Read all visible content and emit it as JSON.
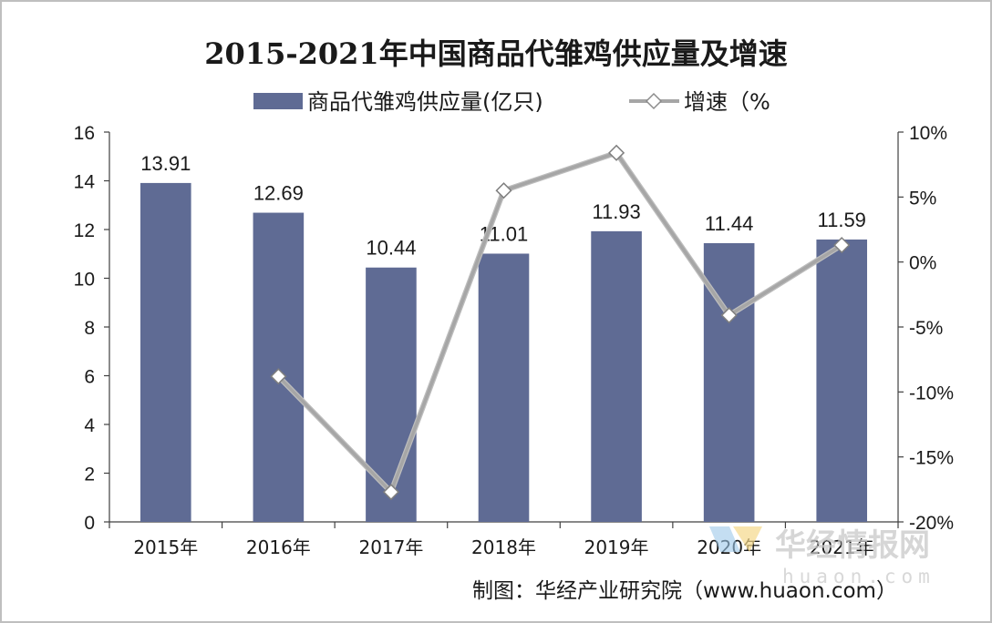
{
  "chart_data": {
    "type": "bar",
    "title": "2015-2021年中国商品代雏鸡供应量及增速",
    "categories": [
      "2015年",
      "2016年",
      "2017年",
      "2018年",
      "2019年",
      "2020年",
      "2021年"
    ],
    "series": [
      {
        "name": "商品代雏鸡供应量(亿只)",
        "type": "bar",
        "axis": "left",
        "values": [
          13.91,
          12.69,
          10.44,
          11.01,
          11.93,
          11.44,
          11.59
        ],
        "data_labels": [
          "13.91",
          "12.69",
          "10.44",
          "11.01",
          "11.93",
          "11.44",
          "11.59"
        ],
        "color": "#5f6b94"
      },
      {
        "name": "增速（%",
        "type": "line",
        "axis": "right",
        "values": [
          null,
          -8.8,
          -17.7,
          5.5,
          8.4,
          -4.1,
          1.3
        ],
        "color": "#a6a6a6"
      }
    ],
    "y_left": {
      "min": 0,
      "max": 16,
      "ticks": [
        "0",
        "2",
        "4",
        "6",
        "8",
        "10",
        "12",
        "14",
        "16"
      ]
    },
    "y_right": {
      "min": -20,
      "max": 10,
      "ticks": [
        "-20%",
        "-15%",
        "-10%",
        "-5%",
        "0%",
        "5%",
        "10%"
      ]
    },
    "grid": false,
    "legend_position": "top"
  },
  "source": "制图：华经产业研究院（www.huaon.com）",
  "watermark": {
    "brand": "华经情报网",
    "url": "huaon.com"
  }
}
